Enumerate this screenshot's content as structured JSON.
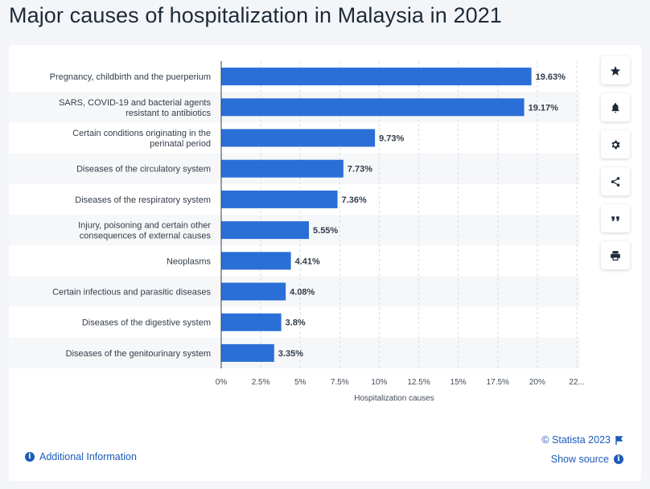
{
  "page": {
    "title": "Major causes of hospitalization in Malaysia in 2021"
  },
  "toolbar": {
    "buttons": [
      {
        "name": "favorite-button",
        "icon": "star-icon"
      },
      {
        "name": "notification-button",
        "icon": "bell-icon"
      },
      {
        "name": "settings-button",
        "icon": "gear-icon"
      },
      {
        "name": "share-button",
        "icon": "share-icon"
      },
      {
        "name": "cite-button",
        "icon": "quote-icon"
      },
      {
        "name": "print-button",
        "icon": "printer-icon"
      }
    ]
  },
  "footer": {
    "additional_info": "Additional Information",
    "copyright": "© Statista 2023",
    "show_source": "Show source"
  },
  "colors": {
    "bar": "#2a6fd6",
    "link": "#1c5bb8",
    "title": "#1e2a38",
    "band": "#f6f7f9"
  },
  "chart_data": {
    "type": "bar",
    "orientation": "horizontal",
    "categories": [
      [
        "Pregnancy, childbirth and the puerperium"
      ],
      [
        "SARS, COVID-19 and bacterial agents",
        "resistant to antibiotics"
      ],
      [
        "Certain conditions originating in the",
        "perinatal period"
      ],
      [
        "Diseases of the circulatory system"
      ],
      [
        "Diseases of the respiratory system"
      ],
      [
        "Injury, poisoning and certain other",
        "consequences of external causes"
      ],
      [
        "Neoplasms"
      ],
      [
        "Certain infectious and parasitic diseases"
      ],
      [
        "Diseases of the digestive system"
      ],
      [
        "Diseases of the genitourinary system"
      ]
    ],
    "values": [
      19.63,
      19.17,
      9.73,
      7.73,
      7.36,
      5.55,
      4.41,
      4.08,
      3.8,
      3.35
    ],
    "value_labels": [
      "19.63%",
      "19.17%",
      "9.73%",
      "7.73%",
      "7.36%",
      "5.55%",
      "4.41%",
      "4.08%",
      "3.8%",
      "3.35%"
    ],
    "xticks": [
      0,
      2.5,
      5,
      7.5,
      10,
      12.5,
      15,
      17.5,
      20,
      22.5
    ],
    "xtick_labels": [
      "0%",
      "2.5%",
      "5%",
      "7.5%",
      "10%",
      "12.5%",
      "15%",
      "17.5%",
      "20%",
      "22..."
    ],
    "xlim": [
      0,
      22.5
    ],
    "xlabel": "Hospitalization causes",
    "grid": "vertical-dashed"
  }
}
